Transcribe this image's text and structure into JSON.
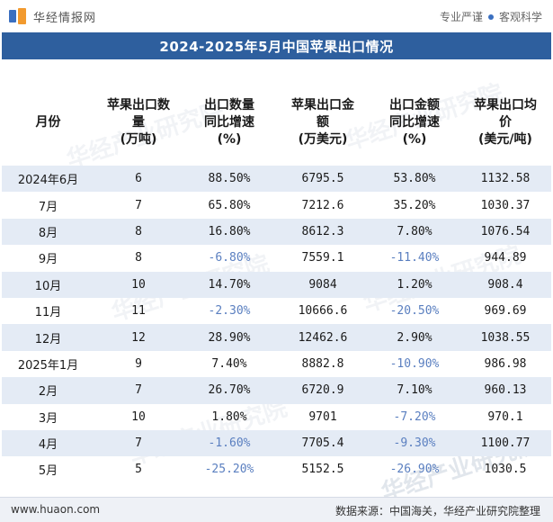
{
  "brand": {
    "name": "华经情报网"
  },
  "tagline": {
    "left": "专业严谨",
    "right": "客观科学"
  },
  "title": "2024-2025年5月中国苹果出口情况",
  "table": {
    "headers": [
      [
        "月份"
      ],
      [
        "苹果出口数",
        "量",
        "(万吨)"
      ],
      [
        "出口数量",
        "同比增速",
        "(%)"
      ],
      [
        "苹果出口金",
        "额",
        "(万美元)"
      ],
      [
        "出口金额",
        "同比增速",
        "(%)"
      ],
      [
        "苹果出口均",
        "价",
        "(美元/吨)"
      ]
    ],
    "rows": [
      [
        "2024年6月",
        "6",
        "88.50%",
        "6795.5",
        "53.80%",
        "1132.58"
      ],
      [
        "7月",
        "7",
        "65.80%",
        "7212.6",
        "35.20%",
        "1030.37"
      ],
      [
        "8月",
        "8",
        "16.80%",
        "8612.3",
        "7.80%",
        "1076.54"
      ],
      [
        "9月",
        "8",
        "-6.80%",
        "7559.1",
        "-11.40%",
        "944.89"
      ],
      [
        "10月",
        "10",
        "14.70%",
        "9084",
        "1.20%",
        "908.4"
      ],
      [
        "11月",
        "11",
        "-2.30%",
        "10666.6",
        "-20.50%",
        "969.69"
      ],
      [
        "12月",
        "12",
        "28.90%",
        "12462.6",
        "2.90%",
        "1038.55"
      ],
      [
        "2025年1月",
        "9",
        "7.40%",
        "8882.8",
        "-10.90%",
        "986.98"
      ],
      [
        "2月",
        "7",
        "26.70%",
        "6720.9",
        "7.10%",
        "960.13"
      ],
      [
        "3月",
        "10",
        "1.80%",
        "9701",
        "-7.20%",
        "970.1"
      ],
      [
        "4月",
        "7",
        "-1.60%",
        "7705.4",
        "-9.30%",
        "1100.77"
      ],
      [
        "5月",
        "5",
        "-25.20%",
        "5152.5",
        "-26.90%",
        "1030.5"
      ]
    ]
  },
  "watermark": "华经产业研究院",
  "footer": {
    "site": "www.huaon.com",
    "source": "数据来源：中国海关，华经产业研究院整理"
  },
  "colors": {
    "title_bg": "#2e5f9e",
    "alt_row_bg": "#e4ebf5",
    "negative_text": "#5a7fc0"
  }
}
